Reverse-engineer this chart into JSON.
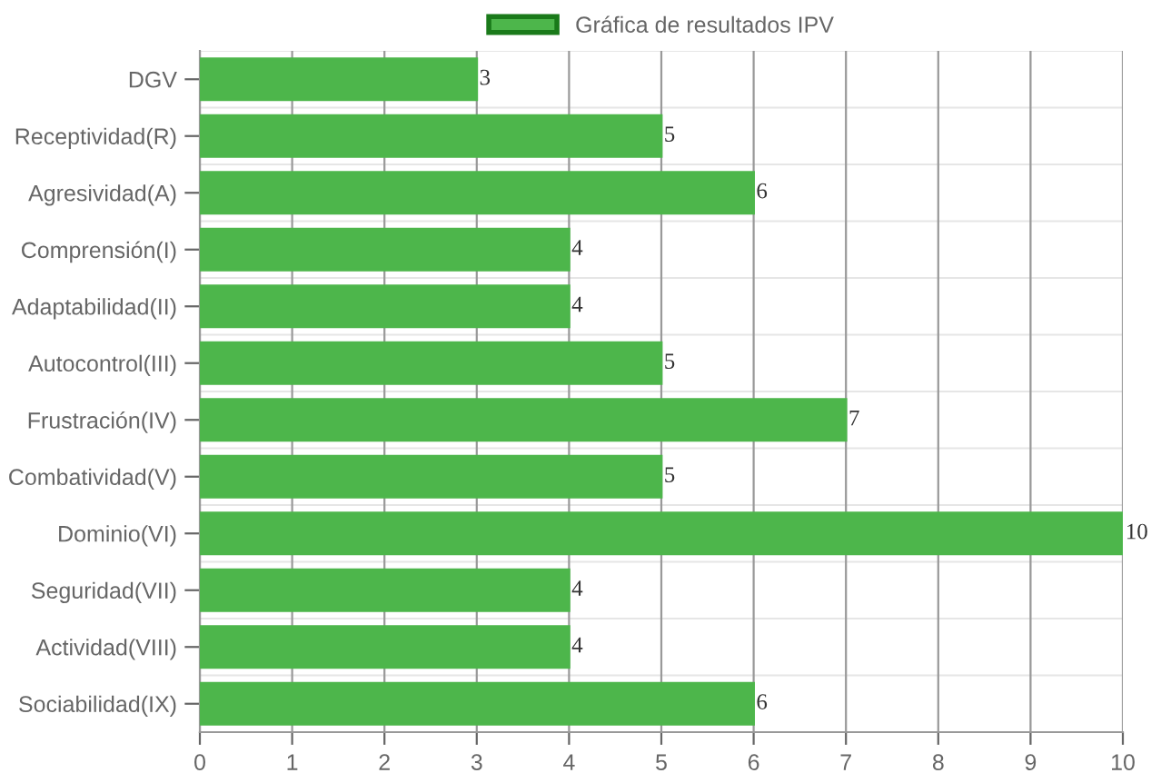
{
  "chart_data": {
    "type": "bar",
    "orientation": "horizontal",
    "categories": [
      "DGV",
      "Receptividad(R)",
      "Agresividad(A)",
      "Comprensión(I)",
      "Adaptabilidad(II)",
      "Autocontrol(III)",
      "Frustración(IV)",
      "Combatividad(V)",
      "Dominio(VI)",
      "Seguridad(VII)",
      "Actividad(VIII)",
      "Sociabilidad(IX)"
    ],
    "series": [
      {
        "name": "Gráfica de resultados IPV",
        "color": "#4db64b",
        "values": [
          3,
          5,
          6,
          4,
          4,
          5,
          7,
          5,
          10,
          4,
          4,
          6
        ]
      }
    ],
    "xlim": [
      0,
      10
    ],
    "xticks": [
      0,
      1,
      2,
      3,
      4,
      5,
      6,
      7,
      8,
      9,
      10
    ],
    "grid": true,
    "legend": "top",
    "data_labels": true
  }
}
